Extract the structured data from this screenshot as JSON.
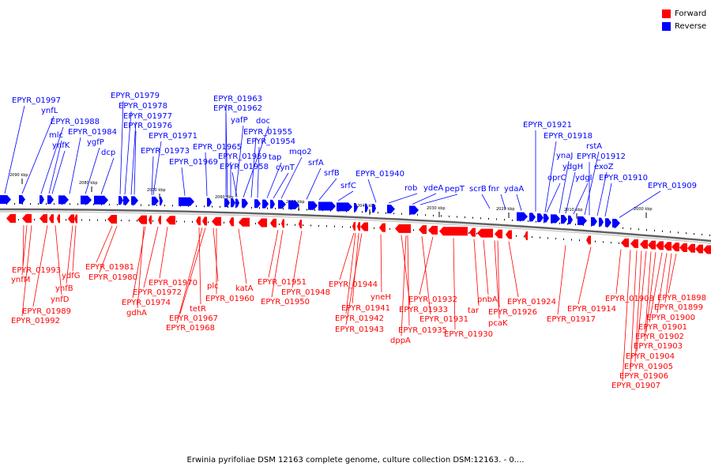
{
  "colors": {
    "forward": "#ff0000",
    "reverse": "#0000ff",
    "backbone": "#808080"
  },
  "legend": [
    {
      "label": "Forward",
      "color": "#ff0000"
    },
    {
      "label": "Reverse",
      "color": "#0000ff"
    }
  ],
  "caption": "Erwinia pyrifoliae DSM 12163 complete genome, culture collection DSM:12163. - 0....",
  "scale_labels": [
    "2090 kbp",
    "2080 kbp",
    "2070 kbp",
    "2060 kbp",
    "2050 kbp",
    "2040 kbp",
    "2030 kbp",
    "2020 kbp",
    "2010 kbp",
    "2000 kbp"
  ],
  "reverse_labels": [
    "EPYR_01997",
    "ynfL",
    "EPYR_01988",
    "mlc",
    "ynfK",
    "EPYR_01984",
    "ygfP",
    "dcp",
    "EPYR_01979",
    "EPYR_01978",
    "EPYR_01977",
    "EPYR_01976",
    "EPYR_01971",
    "EPYR_01973",
    "EPYR_01969",
    "EPYR_01965",
    "EPYR_01963",
    "EPYR_01962",
    "yafP",
    "doc",
    "EPYR_01955",
    "EPYR_01954",
    "EPYR_01959",
    "EPYR_01958",
    "tap",
    "mqo2",
    "cynT",
    "srfA",
    "srfB",
    "srfC",
    "EPYR_01940",
    "rob",
    "ydeA",
    "pepT",
    "scrB",
    "fnr",
    "ydaA",
    "EPYR_01921",
    "EPYR_01918",
    "ynaJ",
    "ydgH",
    "rstA",
    "oprC",
    "ydgI",
    "EPYR_01912",
    "exoZ",
    "EPYR_01910",
    "EPYR_01909"
  ],
  "forward_labels": [
    "EPYR_01993",
    "ynfM",
    "ydfG",
    "ynfB",
    "EPYR_01989",
    "ynfD",
    "EPYR_01992",
    "EPYR_01981",
    "EPYR_01980",
    "EPYR_01970",
    "EPYR_01972",
    "EPYR_01974",
    "gdhA",
    "plc",
    "EPYR_01960",
    "tetR",
    "EPYR_01967",
    "EPYR_01968",
    "katA",
    "EPYR_01951",
    "EPYR_01948",
    "EPYR_01950",
    "EPYR_01944",
    "yneH",
    "EPYR_01941",
    "EPYR_01942",
    "EPYR_01943",
    "EPYR_01935",
    "dppA",
    "EPYR_01932",
    "EPYR_01933",
    "EPYR_01931",
    "EPYR_01930",
    "tar",
    "pnbA",
    "EPYR_01926",
    "pcaK",
    "EPYR_01924",
    "EPYR_01914",
    "EPYR_01917",
    "EPYR_01908",
    "EPYR_01898",
    "EPYR_01899",
    "EPYR_01900",
    "EPYR_01901",
    "EPYR_01902",
    "EPYR_01903",
    "EPYR_01904",
    "EPYR_01905",
    "EPYR_01906",
    "EPYR_01907"
  ]
}
